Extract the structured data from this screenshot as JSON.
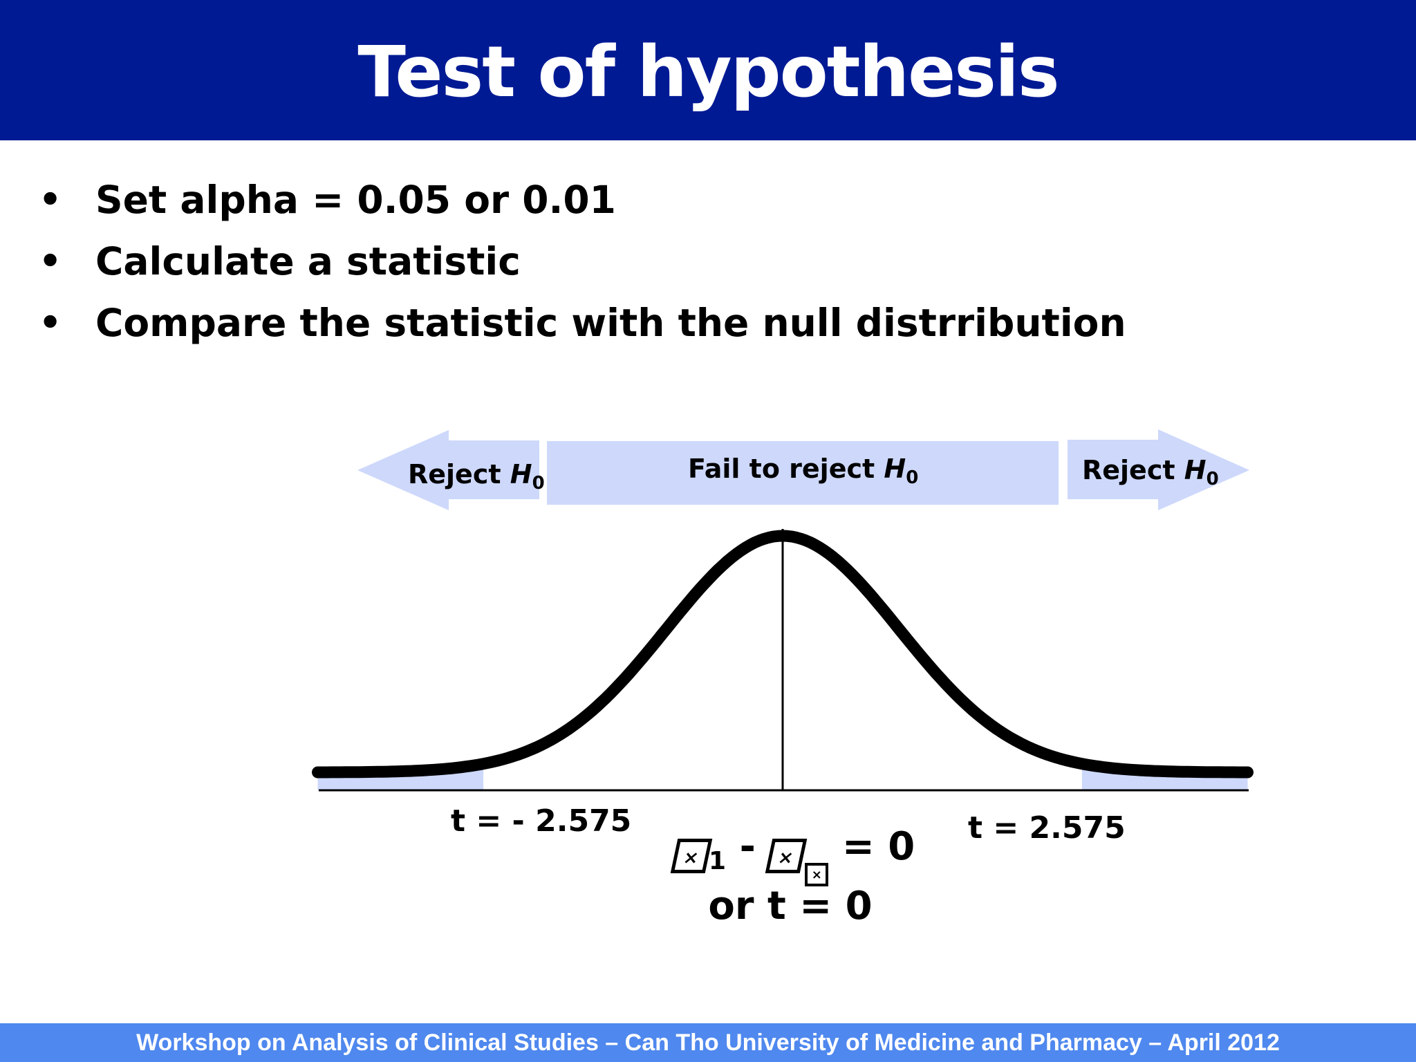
{
  "slide": {
    "title": "Test of hypothesis",
    "bullets": [
      "Set alpha = 0.05 or 0.01",
      "Calculate a statistic",
      "Compare the statistic with the null distrribution"
    ],
    "bullet_glyph": "•"
  },
  "diagram": {
    "regions": {
      "left": {
        "label": "Reject",
        "symbol": "H",
        "subscript": "0"
      },
      "center": {
        "label": "Fail to reject",
        "symbol": "H",
        "subscript": "0"
      },
      "right": {
        "label": "Reject",
        "symbol": "H",
        "subscript": "0"
      }
    },
    "critical_values": {
      "left_label": "t = - 2.575",
      "right_label": "t = 2.575",
      "left": -2.575,
      "right": 2.575
    },
    "null_hypothesis": {
      "minus": "-",
      "subscript_1": "1",
      "equals": "= 0",
      "alternative": "or t = 0"
    },
    "colors": {
      "band_fill": "#cdd8fb",
      "curve": "#000000",
      "title_bar": "#001a94",
      "footer_bar": "#4f88ee"
    }
  },
  "footer": {
    "text": "Workshop on Analysis of Clinical Studies – Can Tho University of Medicine and Pharmacy – April 2012"
  }
}
